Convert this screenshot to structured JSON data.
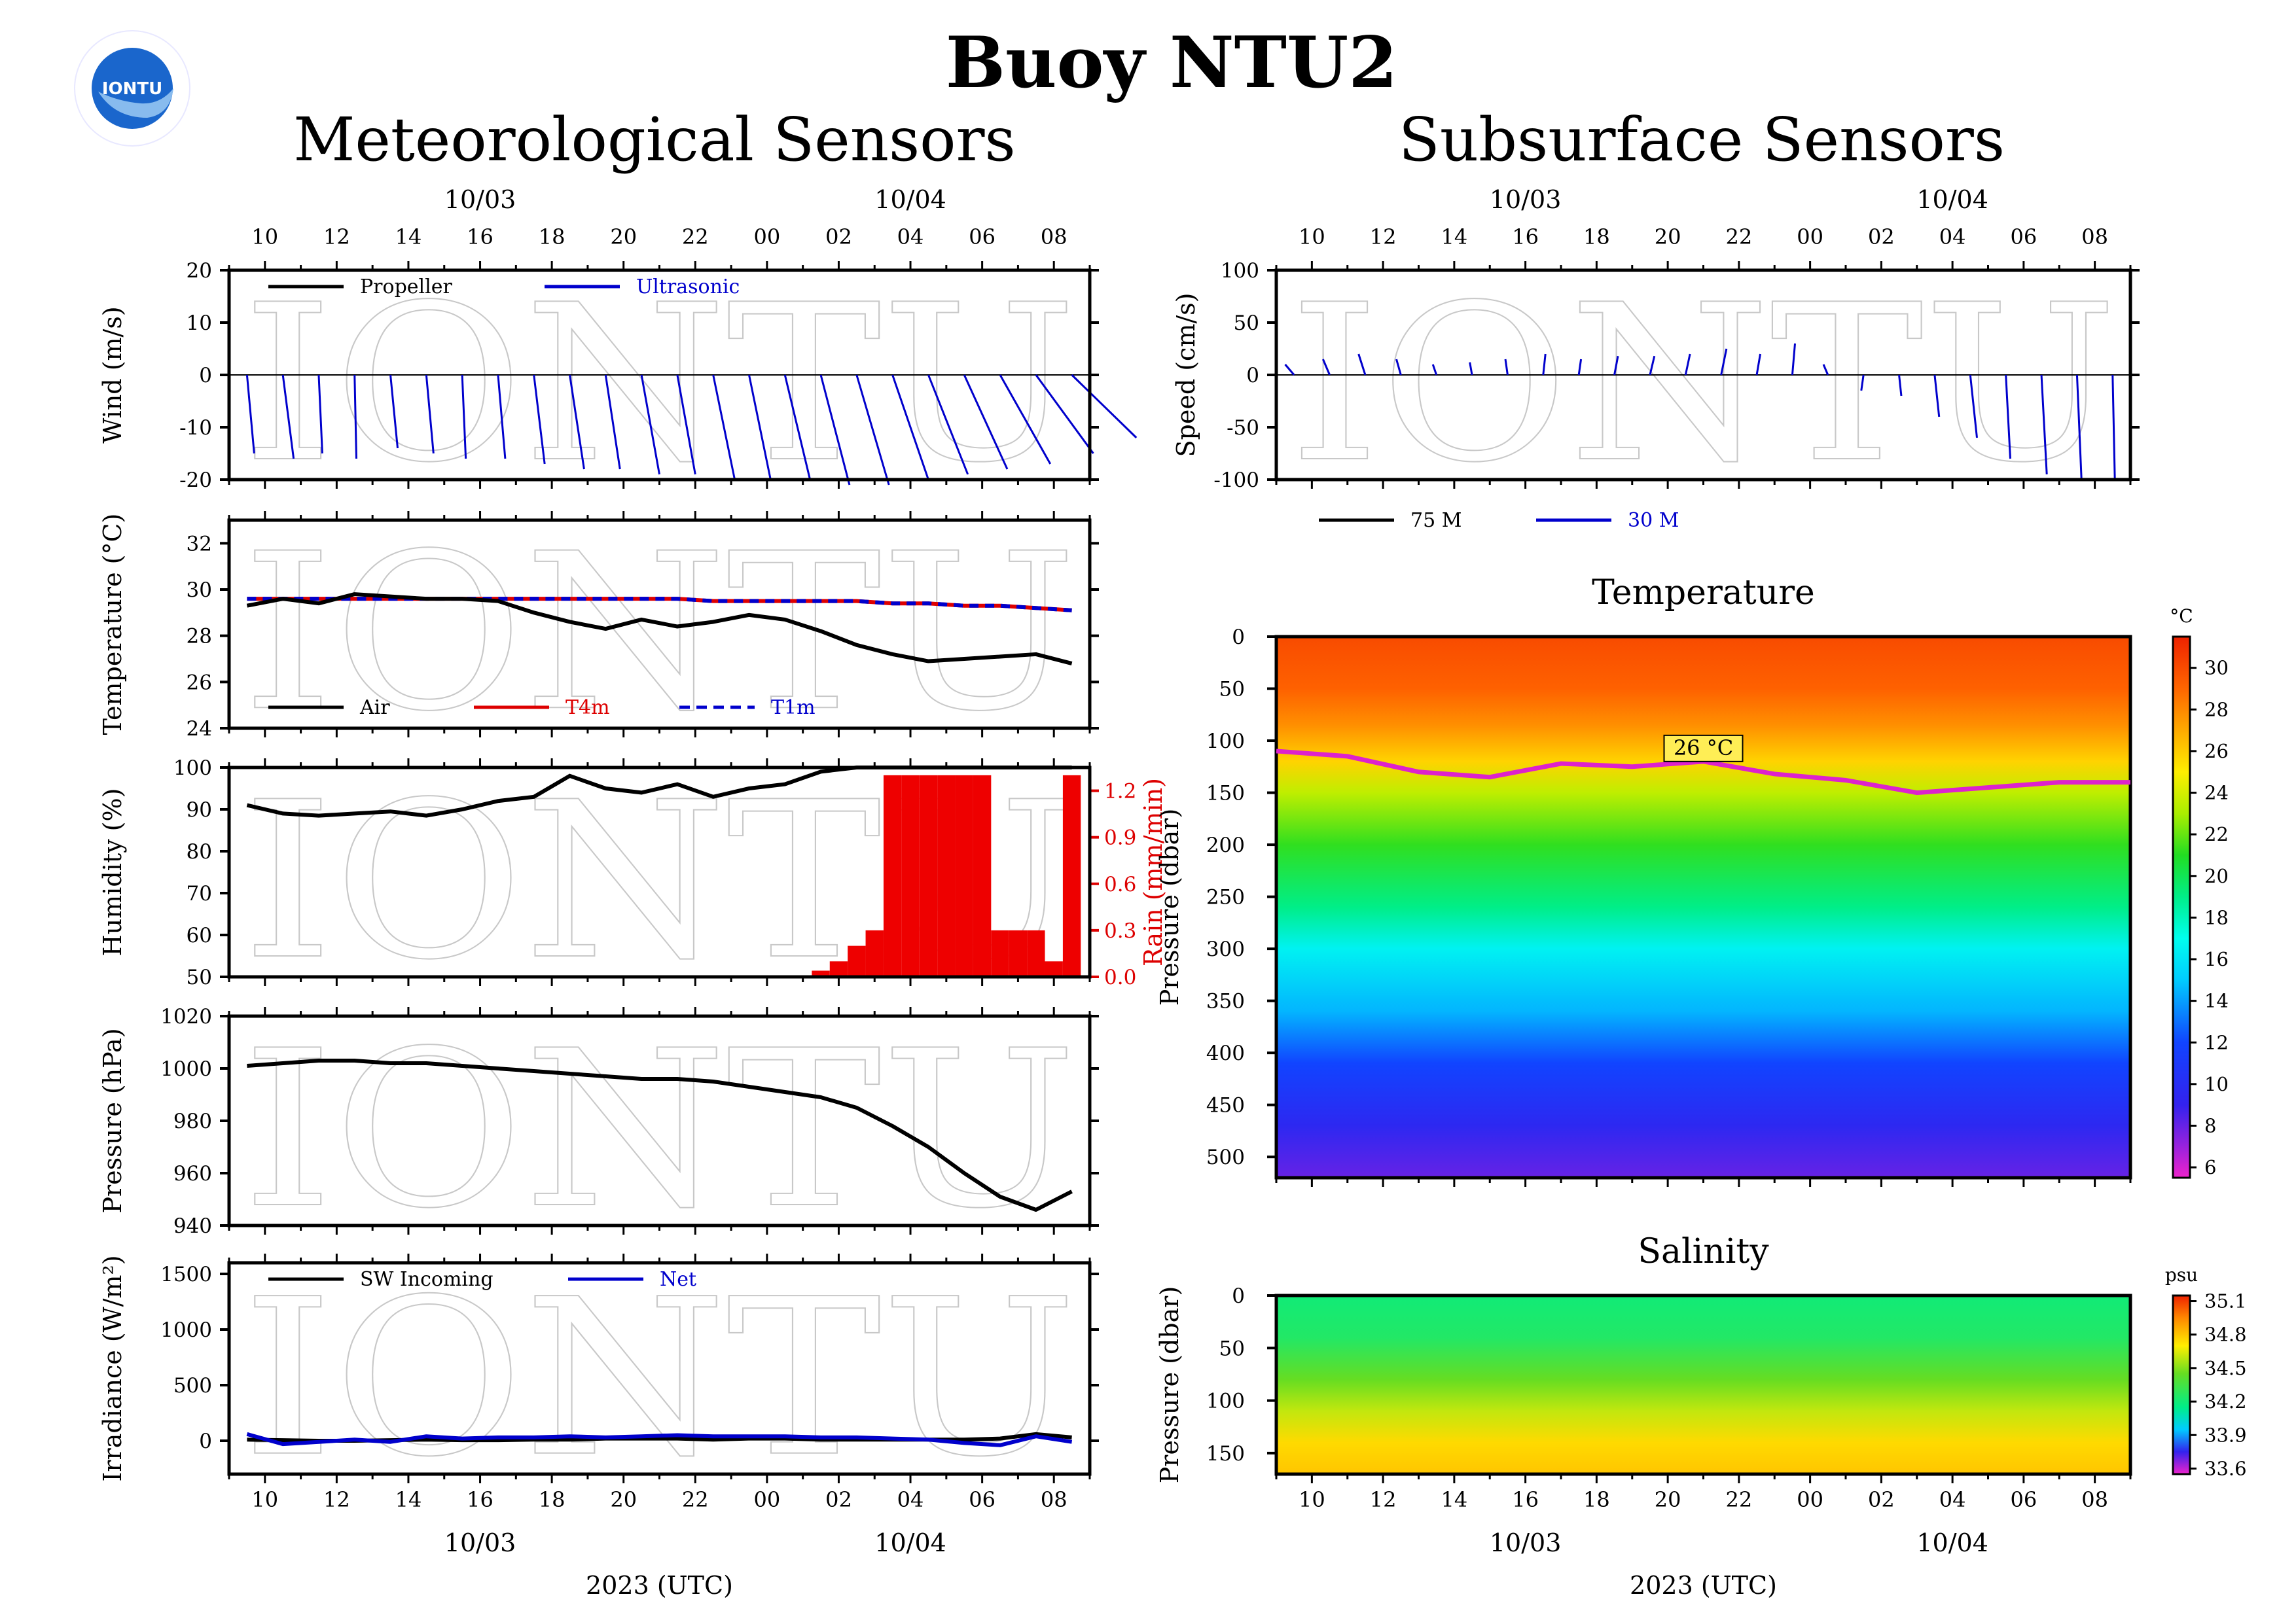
{
  "page": {
    "title": "Buoy NTU2",
    "left_heading": "Meteorological Sensors",
    "right_heading": "Subsurface Sensors",
    "logo_text": "IONTU",
    "watermark": "IONTU"
  },
  "colors": {
    "black": "#000000",
    "blue": "#0000cc",
    "red": "#dd0000",
    "magenta": "#dd22cc",
    "rain": "#ee0000"
  },
  "time_axis": {
    "x_range": [
      "2023-10-03T09:00",
      "2023-10-04T09:00"
    ],
    "hour_ticks": [
      "10",
      "12",
      "14",
      "16",
      "18",
      "20",
      "22",
      "00",
      "02",
      "04",
      "06",
      "08"
    ],
    "date_labels": [
      {
        "label": "10/03",
        "x": "2023-10-03T16:00"
      },
      {
        "label": "10/04",
        "x": "2023-10-04T04:00"
      }
    ],
    "xlabel": "2023 (UTC)"
  },
  "chart_data": [
    {
      "id": "wind",
      "type": "line",
      "ylabel": "Wind (m/s)",
      "ylim": [
        -20,
        20
      ],
      "yticks": [
        -20,
        -10,
        0,
        10,
        20
      ],
      "legend": [
        {
          "name": "Propeller",
          "color": "#000000",
          "style": "solid"
        },
        {
          "name": "Ultrasonic",
          "color": "#0000cc",
          "style": "solid"
        }
      ],
      "legend_position": "top-left",
      "sticks": {
        "x": [
          "2023-10-03T09:30",
          "2023-10-03T10:30",
          "2023-10-03T11:30",
          "2023-10-03T12:30",
          "2023-10-03T13:30",
          "2023-10-03T14:30",
          "2023-10-03T15:30",
          "2023-10-03T16:30",
          "2023-10-03T17:30",
          "2023-10-03T18:30",
          "2023-10-03T19:30",
          "2023-10-03T20:30",
          "2023-10-03T21:30",
          "2023-10-03T22:30",
          "2023-10-03T23:30",
          "2023-10-04T00:30",
          "2023-10-04T01:30",
          "2023-10-04T02:30",
          "2023-10-04T03:30",
          "2023-10-04T04:30",
          "2023-10-04T05:30",
          "2023-10-04T06:30",
          "2023-10-04T07:30",
          "2023-10-04T08:30"
        ],
        "u": [
          2,
          3,
          1,
          0.5,
          2,
          2,
          1,
          2,
          3,
          4,
          4,
          5,
          5,
          6,
          6,
          7,
          8,
          9,
          10,
          11,
          12,
          14,
          16,
          18
        ],
        "v": [
          -15,
          -16,
          -15,
          -16,
          -14,
          -15,
          -16,
          -16,
          -17,
          -18,
          -18,
          -19,
          -19,
          -20,
          -20,
          -20,
          -21,
          -21,
          -20,
          -19,
          -18,
          -17,
          -15,
          -12
        ]
      }
    },
    {
      "id": "temperature",
      "type": "line",
      "ylabel": "Temperature (°C)",
      "ylim": [
        24,
        33
      ],
      "yticks": [
        24,
        26,
        28,
        30,
        32
      ],
      "legend": [
        {
          "name": "Air",
          "color": "#000000",
          "style": "solid"
        },
        {
          "name": "T4m",
          "color": "#dd0000",
          "style": "solid"
        },
        {
          "name": "T1m",
          "color": "#0000cc",
          "style": "dashed"
        }
      ],
      "legend_position": "bottom",
      "x": [
        "2023-10-03T09:30",
        "2023-10-03T10:30",
        "2023-10-03T11:30",
        "2023-10-03T12:30",
        "2023-10-03T13:30",
        "2023-10-03T14:30",
        "2023-10-03T15:30",
        "2023-10-03T16:30",
        "2023-10-03T17:30",
        "2023-10-03T18:30",
        "2023-10-03T19:30",
        "2023-10-03T20:30",
        "2023-10-03T21:30",
        "2023-10-03T22:30",
        "2023-10-03T23:30",
        "2023-10-04T00:30",
        "2023-10-04T01:30",
        "2023-10-04T02:30",
        "2023-10-04T03:30",
        "2023-10-04T04:30",
        "2023-10-04T05:30",
        "2023-10-04T06:30",
        "2023-10-04T07:30",
        "2023-10-04T08:30"
      ],
      "series": [
        {
          "name": "Air",
          "values": [
            29.3,
            29.6,
            29.4,
            29.8,
            29.7,
            29.6,
            29.6,
            29.5,
            29.0,
            28.6,
            28.3,
            28.7,
            28.4,
            28.6,
            28.9,
            28.7,
            28.2,
            27.6,
            27.2,
            26.9,
            27.0,
            27.1,
            27.2,
            26.8
          ]
        },
        {
          "name": "T4m",
          "values": [
            29.6,
            29.6,
            29.6,
            29.6,
            29.6,
            29.6,
            29.6,
            29.6,
            29.6,
            29.6,
            29.6,
            29.6,
            29.6,
            29.5,
            29.5,
            29.5,
            29.5,
            29.5,
            29.4,
            29.4,
            29.3,
            29.3,
            29.2,
            29.1
          ]
        },
        {
          "name": "T1m",
          "values": [
            29.6,
            29.6,
            29.6,
            29.6,
            29.6,
            29.6,
            29.6,
            29.6,
            29.6,
            29.6,
            29.6,
            29.6,
            29.6,
            29.5,
            29.5,
            29.5,
            29.5,
            29.5,
            29.4,
            29.4,
            29.3,
            29.3,
            29.2,
            29.1
          ]
        }
      ]
    },
    {
      "id": "humidity_rain",
      "type": "line",
      "ylabel": "Humidity (%)",
      "ylim": [
        50,
        100
      ],
      "yticks": [
        50,
        60,
        70,
        80,
        90,
        100
      ],
      "y2label": "Rain (mm/min)",
      "y2lim": [
        0,
        1.35
      ],
      "y2ticks": [
        0.0,
        0.3,
        0.6,
        0.9,
        1.2
      ],
      "y2ticklabels": [
        "0.0",
        "0.3",
        "0.6",
        "0.9",
        "1.2"
      ],
      "x": [
        "2023-10-03T09:30",
        "2023-10-03T10:30",
        "2023-10-03T11:30",
        "2023-10-03T12:30",
        "2023-10-03T13:30",
        "2023-10-03T14:30",
        "2023-10-03T15:30",
        "2023-10-03T16:30",
        "2023-10-03T17:30",
        "2023-10-03T18:30",
        "2023-10-03T19:30",
        "2023-10-03T20:30",
        "2023-10-03T21:30",
        "2023-10-03T22:30",
        "2023-10-03T23:30",
        "2023-10-04T00:30",
        "2023-10-04T01:30",
        "2023-10-04T02:30",
        "2023-10-04T03:30",
        "2023-10-04T04:30",
        "2023-10-04T05:30",
        "2023-10-04T06:30",
        "2023-10-04T07:30",
        "2023-10-04T08:30"
      ],
      "series": [
        {
          "name": "Humidity",
          "values": [
            91,
            89,
            88.5,
            89,
            89.5,
            88.5,
            90,
            92,
            93,
            98,
            95,
            94,
            96,
            93,
            95,
            96,
            99,
            100,
            100,
            100,
            100,
            100,
            100,
            100
          ]
        }
      ],
      "rain": {
        "x": [
          "2023-10-04T01:30",
          "2023-10-04T02:00",
          "2023-10-04T02:30",
          "2023-10-04T03:00",
          "2023-10-04T03:30",
          "2023-10-04T04:00",
          "2023-10-04T04:30",
          "2023-10-04T05:00",
          "2023-10-04T05:30",
          "2023-10-04T06:00",
          "2023-10-04T06:30",
          "2023-10-04T07:00",
          "2023-10-04T07:30",
          "2023-10-04T08:00",
          "2023-10-04T08:30"
        ],
        "values": [
          0.04,
          0.1,
          0.2,
          0.3,
          1.3,
          1.3,
          1.3,
          1.3,
          1.3,
          1.3,
          0.3,
          0.3,
          0.3,
          0.1,
          1.3
        ]
      }
    },
    {
      "id": "pressure",
      "type": "line",
      "ylabel": "Pressure (hPa)",
      "ylim": [
        940,
        1020
      ],
      "yticks": [
        940,
        960,
        980,
        1000,
        1020
      ],
      "x": [
        "2023-10-03T09:30",
        "2023-10-03T10:30",
        "2023-10-03T11:30",
        "2023-10-03T12:30",
        "2023-10-03T13:30",
        "2023-10-03T14:30",
        "2023-10-03T15:30",
        "2023-10-03T16:30",
        "2023-10-03T17:30",
        "2023-10-03T18:30",
        "2023-10-03T19:30",
        "2023-10-03T20:30",
        "2023-10-03T21:30",
        "2023-10-03T22:30",
        "2023-10-03T23:30",
        "2023-10-04T00:30",
        "2023-10-04T01:30",
        "2023-10-04T02:30",
        "2023-10-04T03:30",
        "2023-10-04T04:30",
        "2023-10-04T05:30",
        "2023-10-04T06:30",
        "2023-10-04T07:30",
        "2023-10-04T08:30"
      ],
      "series": [
        {
          "name": "Pressure",
          "values": [
            1001,
            1002,
            1003,
            1003,
            1002,
            1002,
            1001,
            1000,
            999,
            998,
            997,
            996,
            996,
            995,
            993,
            991,
            989,
            985,
            978,
            970,
            960,
            951,
            946,
            953
          ]
        }
      ]
    },
    {
      "id": "irradiance",
      "type": "line",
      "ylabel": "Irradiance (W/m²)",
      "ylim": [
        -300,
        1600
      ],
      "yticks": [
        0,
        500,
        1000,
        1500
      ],
      "legend": [
        {
          "name": "SW Incoming",
          "color": "#000000",
          "style": "solid"
        },
        {
          "name": "Net",
          "color": "#0000cc",
          "style": "solid"
        }
      ],
      "legend_position": "top-left",
      "x": [
        "2023-10-03T09:30",
        "2023-10-03T10:30",
        "2023-10-03T11:30",
        "2023-10-03T12:30",
        "2023-10-03T13:30",
        "2023-10-03T14:30",
        "2023-10-03T15:30",
        "2023-10-03T16:30",
        "2023-10-03T17:30",
        "2023-10-03T18:30",
        "2023-10-03T19:30",
        "2023-10-03T20:30",
        "2023-10-03T21:30",
        "2023-10-03T22:30",
        "2023-10-03T23:30",
        "2023-10-04T00:30",
        "2023-10-04T01:30",
        "2023-10-04T02:30",
        "2023-10-04T03:30",
        "2023-10-04T04:30",
        "2023-10-04T05:30",
        "2023-10-04T06:30",
        "2023-10-04T07:30",
        "2023-10-04T08:30"
      ],
      "series": [
        {
          "name": "SW Incoming",
          "values": [
            10,
            5,
            0,
            0,
            5,
            10,
            5,
            5,
            10,
            10,
            20,
            20,
            20,
            10,
            20,
            20,
            10,
            10,
            10,
            10,
            10,
            20,
            60,
            30
          ]
        },
        {
          "name": "Net",
          "values": [
            60,
            -30,
            -10,
            10,
            -10,
            40,
            20,
            30,
            30,
            40,
            30,
            40,
            50,
            40,
            40,
            40,
            30,
            30,
            20,
            10,
            -20,
            -40,
            40,
            -10
          ]
        }
      ]
    },
    {
      "id": "current",
      "type": "line",
      "ylabel": "Speed (cm/s)",
      "ylim": [
        -100,
        100
      ],
      "yticks": [
        -100,
        -50,
        0,
        50,
        100
      ],
      "legend": [
        {
          "name": "75 M",
          "color": "#000000",
          "style": "solid"
        },
        {
          "name": "30 M",
          "color": "#0000cc",
          "style": "solid"
        }
      ],
      "legend_position": "bottom",
      "sticks": {
        "x": [
          "2023-10-03T09:30",
          "2023-10-03T10:30",
          "2023-10-03T11:30",
          "2023-10-03T12:30",
          "2023-10-03T13:30",
          "2023-10-03T14:30",
          "2023-10-03T15:30",
          "2023-10-03T16:30",
          "2023-10-03T17:30",
          "2023-10-03T18:30",
          "2023-10-03T19:30",
          "2023-10-03T20:30",
          "2023-10-03T21:30",
          "2023-10-03T22:30",
          "2023-10-03T23:30",
          "2023-10-04T00:30",
          "2023-10-04T01:30",
          "2023-10-04T02:30",
          "2023-10-04T03:30",
          "2023-10-04T04:30",
          "2023-10-04T05:30",
          "2023-10-04T06:30",
          "2023-10-04T07:30",
          "2023-10-04T08:30"
        ],
        "u": [
          -20,
          -15,
          -15,
          -10,
          -8,
          -5,
          -5,
          5,
          5,
          8,
          10,
          10,
          12,
          8,
          6,
          -10,
          -5,
          5,
          10,
          15,
          10,
          12,
          10,
          5
        ],
        "v": [
          10,
          15,
          20,
          15,
          10,
          12,
          15,
          20,
          15,
          18,
          18,
          20,
          25,
          20,
          30,
          10,
          -15,
          -20,
          -40,
          -60,
          -80,
          -95,
          -100,
          -100
        ]
      }
    },
    {
      "id": "temperature_section",
      "type": "heatmap",
      "title": "Temperature",
      "ylabel": "Pressure (dbar)",
      "ylim": [
        0,
        520
      ],
      "yticks": [
        0,
        50,
        100,
        150,
        200,
        250,
        300,
        350,
        400,
        450,
        500
      ],
      "colorbar_unit": "°C",
      "colorbar_range": [
        5.5,
        31.5
      ],
      "colorbar_ticks": [
        6,
        8,
        10,
        12,
        14,
        16,
        18,
        20,
        22,
        24,
        26,
        28,
        30
      ],
      "colorscale_stops": [
        {
          "v": 5.5,
          "c": "#ee22cc"
        },
        {
          "v": 7,
          "c": "#9922dd"
        },
        {
          "v": 9,
          "c": "#3322ee"
        },
        {
          "v": 12,
          "c": "#1144ff"
        },
        {
          "v": 15,
          "c": "#00ccff"
        },
        {
          "v": 17,
          "c": "#00ffee"
        },
        {
          "v": 19,
          "c": "#00ee88"
        },
        {
          "v": 21,
          "c": "#22dd22"
        },
        {
          "v": 23,
          "c": "#aaee00"
        },
        {
          "v": 25,
          "c": "#ffee00"
        },
        {
          "v": 27,
          "c": "#ffaa00"
        },
        {
          "v": 29,
          "c": "#ff6600"
        },
        {
          "v": 31.5,
          "c": "#ee2200"
        }
      ],
      "profile_depth": [
        0,
        50,
        85,
        120,
        150,
        200,
        260,
        300,
        360,
        410,
        470,
        520
      ],
      "profile_temp": [
        30,
        29.2,
        27.8,
        25.8,
        23.5,
        21.2,
        19.0,
        16.5,
        14.5,
        12.0,
        9.5,
        8.0
      ],
      "isotherm": {
        "label": "26 °C",
        "x": [
          "2023-10-03T09:00",
          "2023-10-03T11:00",
          "2023-10-03T13:00",
          "2023-10-03T15:00",
          "2023-10-03T17:00",
          "2023-10-03T19:00",
          "2023-10-03T21:00",
          "2023-10-03T23:00",
          "2023-10-04T01:00",
          "2023-10-04T03:00",
          "2023-10-04T05:00",
          "2023-10-04T07:00",
          "2023-10-04T09:00"
        ],
        "depth": [
          110,
          115,
          130,
          135,
          122,
          125,
          120,
          132,
          138,
          150,
          145,
          140,
          140
        ]
      }
    },
    {
      "id": "salinity_section",
      "type": "heatmap",
      "title": "Salinity",
      "ylabel": "Pressure (dbar)",
      "ylim": [
        0,
        170
      ],
      "yticks": [
        0,
        50,
        100,
        150
      ],
      "colorbar_unit": "psu",
      "colorbar_range": [
        33.55,
        35.15
      ],
      "colorbar_ticks": [
        33.6,
        33.9,
        34.2,
        34.5,
        34.8,
        35.1
      ],
      "colorscale_stops": [
        {
          "v": 33.55,
          "c": "#ee22cc"
        },
        {
          "v": 33.75,
          "c": "#3322ee"
        },
        {
          "v": 33.95,
          "c": "#00ccff"
        },
        {
          "v": 34.15,
          "c": "#00ee88"
        },
        {
          "v": 34.45,
          "c": "#66dd22"
        },
        {
          "v": 34.7,
          "c": "#ffee00"
        },
        {
          "v": 34.95,
          "c": "#ff8800"
        },
        {
          "v": 35.15,
          "c": "#ee2200"
        }
      ],
      "profile_depth": [
        0,
        40,
        80,
        110,
        140,
        170
      ],
      "profile_sal": [
        34.2,
        34.25,
        34.45,
        34.6,
        34.75,
        34.8
      ]
    }
  ]
}
